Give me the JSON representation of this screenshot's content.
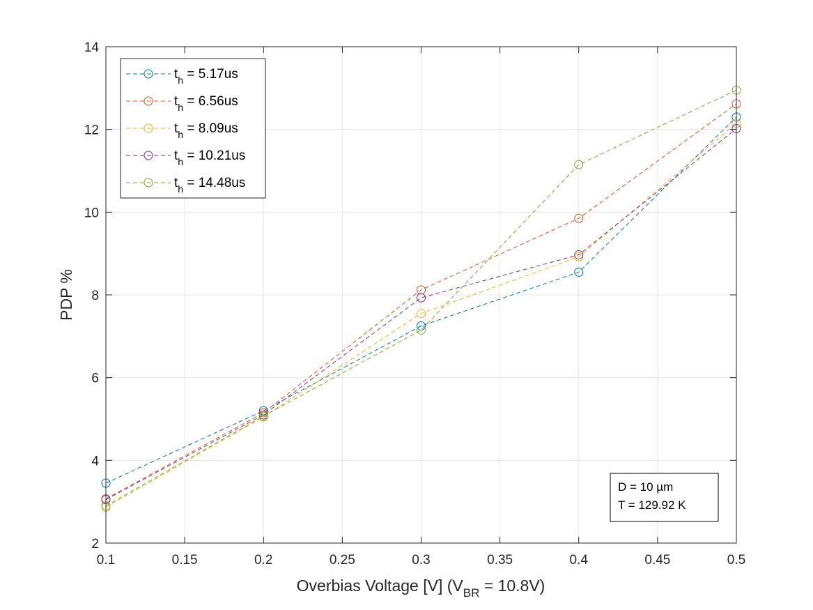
{
  "chart_data": {
    "type": "line",
    "xlabel": {
      "main": "Overbias Voltage [V] (V",
      "sub": "BR",
      "tail": " = 10.8V)"
    },
    "ylabel": "PDP %",
    "xlim": [
      0.1,
      0.5
    ],
    "ylim": [
      2,
      14
    ],
    "grid": true,
    "legend_position": "top-left",
    "x_ticks": [
      {
        "value": 0.1,
        "label": "0.1"
      },
      {
        "value": 0.15,
        "label": "0.15"
      },
      {
        "value": 0.2,
        "label": "0.2"
      },
      {
        "value": 0.25,
        "label": "0.25"
      },
      {
        "value": 0.3,
        "label": "0.3"
      },
      {
        "value": 0.35,
        "label": "0.35"
      },
      {
        "value": 0.4,
        "label": "0.4"
      },
      {
        "value": 0.45,
        "label": "0.45"
      },
      {
        "value": 0.5,
        "label": "0.5"
      }
    ],
    "y_ticks": [
      {
        "value": 2,
        "label": "2"
      },
      {
        "value": 4,
        "label": "4"
      },
      {
        "value": 6,
        "label": "6"
      },
      {
        "value": 8,
        "label": "8"
      },
      {
        "value": 10,
        "label": "10"
      },
      {
        "value": 12,
        "label": "12"
      },
      {
        "value": 14,
        "label": "14"
      }
    ],
    "x": [
      0.1,
      0.2,
      0.3,
      0.4,
      0.5
    ],
    "series": [
      {
        "name": {
          "main": "t",
          "sub": "h",
          "tail": " = 5.17us"
        },
        "color": "#0072BD",
        "values": [
          3.45,
          5.2,
          7.25,
          8.55,
          12.3
        ]
      },
      {
        "name": {
          "main": "t",
          "sub": "h",
          "tail": " = 6.56us"
        },
        "color": "#D95319",
        "values": [
          3.07,
          5.15,
          8.12,
          9.85,
          12.62
        ]
      },
      {
        "name": {
          "main": "t",
          "sub": "h",
          "tail": " = 8.09us"
        },
        "color": "#EDB120",
        "values": [
          2.87,
          5.05,
          7.55,
          8.92,
          12.15
        ]
      },
      {
        "name": {
          "main": "t",
          "sub": "h",
          "tail": " = 10.21us"
        },
        "color": "#7E2F8E",
        "values": [
          3.05,
          5.1,
          7.93,
          8.97,
          12.02
        ]
      },
      {
        "name": {
          "main": "t",
          "sub": "h",
          "tail": " = 14.48us"
        },
        "color": "#77AC30",
        "values": [
          2.9,
          5.07,
          7.15,
          11.15,
          12.95
        ]
      }
    ],
    "annotation": [
      "D = 10 µm",
      "T = 129.92 K"
    ]
  }
}
